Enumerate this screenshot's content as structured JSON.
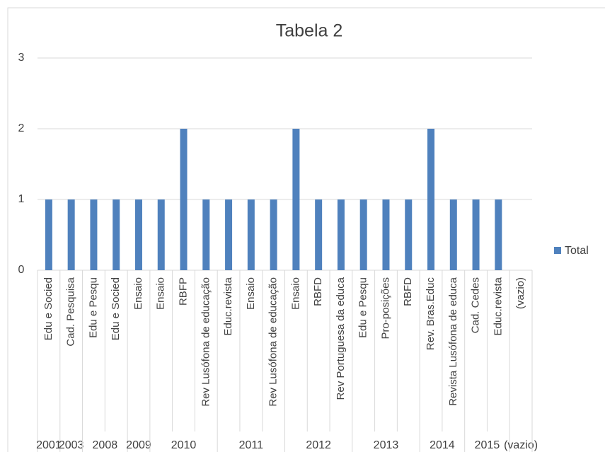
{
  "chart_data": {
    "type": "bar",
    "title": "Tabela 2",
    "series_name": "Total",
    "color": "#4f81bd",
    "ylim": [
      0,
      3
    ],
    "yticks": [
      0,
      1,
      2,
      3
    ],
    "grid": true,
    "legend": "right",
    "groups": [
      {
        "name": "2001",
        "categories": [
          "Edu e Socied"
        ],
        "values": [
          1
        ]
      },
      {
        "name": "2003",
        "categories": [
          "Cad. Pesquisa"
        ],
        "values": [
          1
        ]
      },
      {
        "name": "2008",
        "categories": [
          "Edu e Pesqu",
          "Edu e Socied"
        ],
        "values": [
          1,
          1
        ]
      },
      {
        "name": "2009",
        "categories": [
          "Ensaio"
        ],
        "values": [
          1
        ]
      },
      {
        "name": "2010",
        "categories": [
          "Ensaio",
          "RBFP",
          "Rev Lusófona de educação"
        ],
        "values": [
          1,
          2,
          1
        ]
      },
      {
        "name": "2011",
        "categories": [
          "Educ.revista",
          "Ensaio",
          "Rev Lusófona de educação"
        ],
        "values": [
          1,
          1,
          1
        ]
      },
      {
        "name": "2012",
        "categories": [
          "Ensaio",
          "RBFD",
          "Rev Portuguesa da educa"
        ],
        "values": [
          2,
          1,
          1
        ]
      },
      {
        "name": "2013",
        "categories": [
          "Edu e Pesqu",
          "Pro-posições",
          "RBFD"
        ],
        "values": [
          1,
          1,
          1
        ]
      },
      {
        "name": "2014",
        "categories": [
          "Rev. Bras.Educ",
          "Revista Lusófona de educa"
        ],
        "values": [
          2,
          1
        ]
      },
      {
        "name": "2015",
        "categories": [
          "Cad. Cedes",
          "Educ.revista"
        ],
        "values": [
          1,
          1
        ]
      },
      {
        "name": "(vazio)",
        "categories": [
          "(vazio)"
        ],
        "values": [
          null
        ]
      }
    ]
  }
}
